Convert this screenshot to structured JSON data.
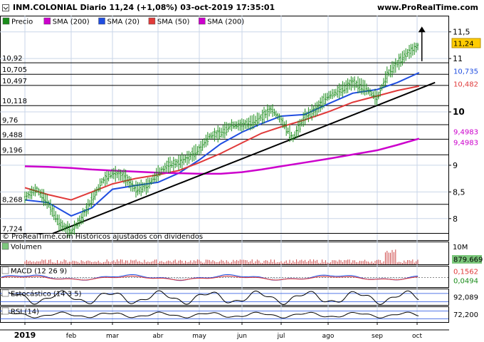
{
  "header": {
    "title": "INM.COLONIAL Diario 11,24 (+1,08%) 03-oct-2019 17:35:01",
    "brand": "www.ProRealTime.com"
  },
  "colors": {
    "price_bar": "#1b8c1b",
    "sma200": "#cc00cc",
    "sma20": "#1f4de0",
    "sma50": "#e03a3a",
    "trendline": "#000000",
    "hline": "#000000",
    "grid": "#c9d6e8",
    "panel_bg": "#ffffff",
    "volume_bar": "#cc4444",
    "volume_tag": "#7cc87c",
    "macd": "#1f4de0",
    "signal": "#e03a3a",
    "stoch_line": "#000000"
  },
  "chart_data": [
    {
      "type": "line",
      "panel": "price",
      "legend": [
        {
          "label": "Precio",
          "color": "#1b8c1b"
        },
        {
          "label": "SMA (200)",
          "color": "#cc00cc"
        },
        {
          "label": "SMA (20)",
          "color": "#1f4de0"
        },
        {
          "label": "SMA (50)",
          "color": "#e03a3a"
        },
        {
          "label": "SMA (200)",
          "color": "#cc00cc"
        }
      ],
      "x_labels": [
        "2019",
        "feb",
        "mar",
        "abr",
        "may",
        "jun",
        "jul",
        "ago",
        "sep",
        "oct"
      ],
      "y_ticks": [
        {
          "value": 11.5,
          "label": "11,5"
        },
        {
          "value": 11,
          "label": "11"
        },
        {
          "value": 10,
          "label": "10"
        },
        {
          "value": 9,
          "label": "9"
        },
        {
          "value": 8.5,
          "label": "8,5"
        },
        {
          "value": 8,
          "label": "8"
        }
      ],
      "ylim": [
        7.65,
        11.75
      ],
      "horizontal_levels": [
        {
          "value": 10.92,
          "label": "10,92"
        },
        {
          "value": 10.705,
          "label": "10,705"
        },
        {
          "value": 10.497,
          "label": "10,497"
        },
        {
          "value": 10.118,
          "label": "10,118"
        },
        {
          "value": 9.76,
          "label": "9,76"
        },
        {
          "value": 9.488,
          "label": "9,488"
        },
        {
          "value": 9.196,
          "label": "9,196"
        },
        {
          "value": 8.268,
          "label": "8,268"
        },
        {
          "value": 7.724,
          "label": "7,724"
        }
      ],
      "value_tags": [
        {
          "value": 11.24,
          "label": "11,24",
          "series": "Precio"
        },
        {
          "value": 10.735,
          "label": "10,735",
          "series": "SMA (20)"
        },
        {
          "value": 10.482,
          "label": "10,482",
          "series": "SMA (50)"
        },
        {
          "value": 9.4983,
          "label": "9,4983",
          "series": "SMA (200)"
        },
        {
          "value": 9.4983,
          "label": "9,4983",
          "series": "SMA (200)"
        }
      ],
      "series": [
        {
          "name": "Precio",
          "x": [
            0,
            0.25,
            0.5,
            0.75,
            1,
            1.25,
            1.5,
            1.75,
            2,
            2.25,
            2.5,
            2.75,
            3,
            3.25,
            3.5,
            3.75,
            4,
            4.25,
            4.5,
            4.75,
            5,
            5.25,
            5.5,
            5.75,
            6,
            6.25,
            6.5,
            6.75,
            7,
            7.25,
            7.5,
            7.75,
            8,
            8.25,
            8.5,
            8.75,
            9.05
          ],
          "values": [
            8.4,
            8.55,
            8.3,
            7.9,
            7.75,
            8.0,
            8.35,
            8.7,
            8.85,
            8.8,
            8.55,
            8.6,
            8.85,
            9.0,
            9.05,
            9.15,
            9.3,
            9.55,
            9.6,
            9.75,
            9.75,
            9.8,
            9.9,
            10.05,
            9.85,
            9.5,
            9.9,
            10.05,
            10.3,
            10.4,
            10.55,
            10.45,
            10.25,
            10.7,
            10.9,
            11.1,
            11.24
          ]
        },
        {
          "name": "SMA (20)",
          "x": [
            0,
            0.5,
            1,
            1.5,
            2,
            2.5,
            3,
            3.5,
            4,
            4.5,
            5,
            5.5,
            6,
            6.5,
            7,
            7.5,
            8,
            8.5,
            9.05
          ],
          "values": [
            8.35,
            8.3,
            8.05,
            8.2,
            8.55,
            8.62,
            8.68,
            8.85,
            9.1,
            9.4,
            9.62,
            9.78,
            9.92,
            9.95,
            10.15,
            10.35,
            10.42,
            10.55,
            10.735
          ]
        },
        {
          "name": "SMA (50)",
          "x": [
            0,
            0.5,
            1,
            1.5,
            2,
            2.5,
            3,
            3.5,
            4,
            4.5,
            5,
            5.5,
            6,
            6.5,
            7,
            7.5,
            8,
            8.5,
            9.05
          ],
          "values": [
            8.58,
            8.45,
            8.35,
            8.5,
            8.65,
            8.75,
            8.82,
            8.9,
            9.05,
            9.22,
            9.42,
            9.6,
            9.72,
            9.85,
            10.0,
            10.18,
            10.3,
            10.4,
            10.482
          ]
        },
        {
          "name": "SMA (200)",
          "x": [
            0,
            0.5,
            1,
            1.5,
            2,
            2.5,
            3,
            3.5,
            4,
            4.5,
            5,
            5.5,
            6,
            6.5,
            7,
            7.5,
            8,
            8.5,
            9.05
          ],
          "values": [
            8.98,
            8.97,
            8.95,
            8.92,
            8.9,
            8.88,
            8.86,
            8.85,
            8.84,
            8.84,
            8.87,
            8.92,
            8.98,
            9.05,
            9.12,
            9.2,
            9.28,
            9.38,
            9.4983
          ]
        }
      ],
      "trendline": {
        "from": {
          "x": 0.6,
          "value": 7.72
        },
        "to": {
          "x": 9.45,
          "value": 10.55
        }
      },
      "arrow": {
        "x": 9.12,
        "from_value": 10.95,
        "to_value": 11.6
      },
      "annotation": "© ProRealTime.com Históricos ajustados con dividendos"
    },
    {
      "type": "bar",
      "panel": "volume",
      "title": "Volumen",
      "y_ticks": [
        {
          "value": 10,
          "label": "10M"
        }
      ],
      "value_tags": [
        {
          "label": "879.669"
        }
      ]
    },
    {
      "type": "line",
      "panel": "macd",
      "title": "MACD (12 26 9)",
      "value_tags": [
        {
          "label": "0,1562"
        },
        {
          "label": "0,0494"
        }
      ]
    },
    {
      "type": "line",
      "panel": "stochastic",
      "title": "Estocástico (14 3 5)",
      "value_tags": [
        {
          "label": "92,089"
        }
      ]
    },
    {
      "type": "line",
      "panel": "rsi",
      "title": "RSI (14)",
      "value_tags": [
        {
          "label": "72,200"
        }
      ]
    }
  ]
}
